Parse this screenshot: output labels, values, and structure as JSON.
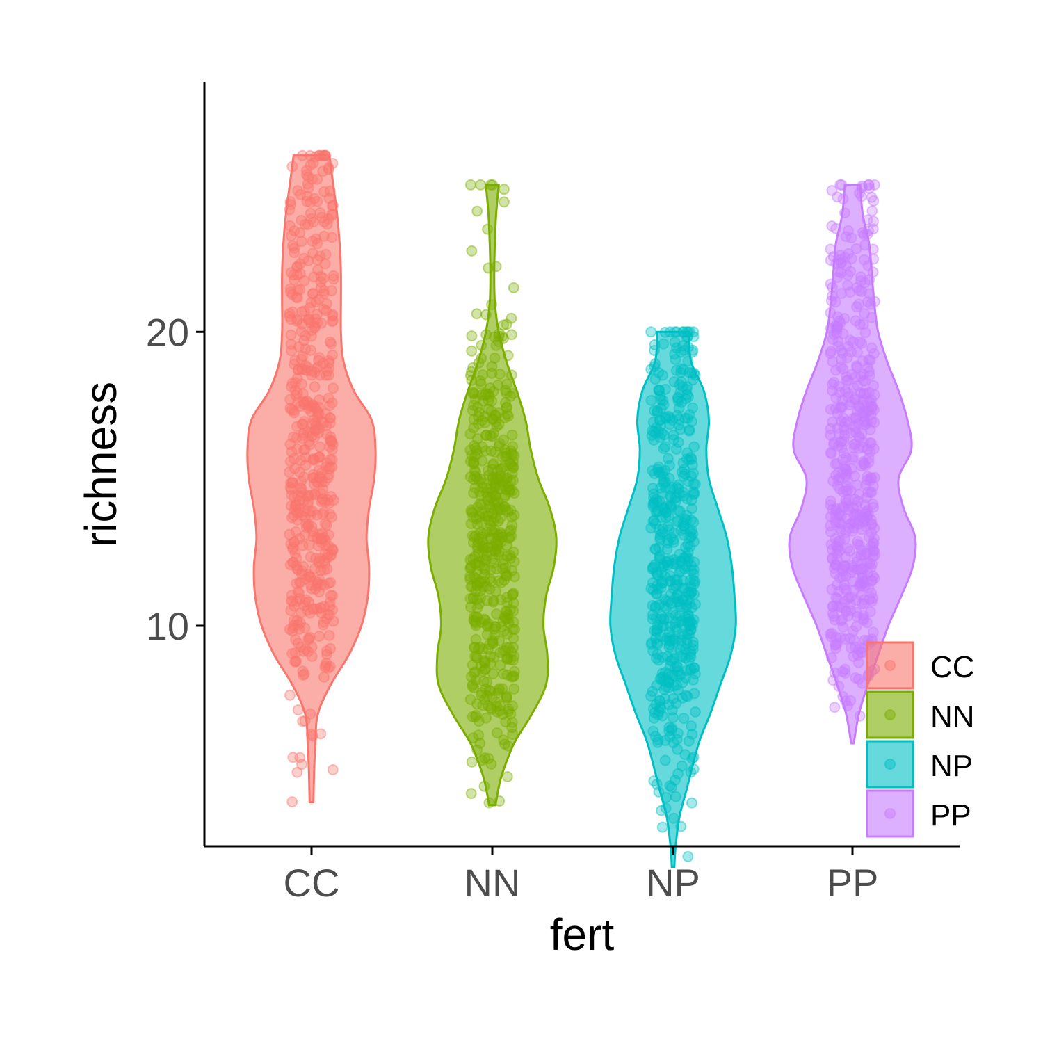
{
  "chart_data": {
    "type": "violin",
    "xlabel": "fert",
    "ylabel": "richness",
    "categories": [
      "CC",
      "NN",
      "NP",
      "PP"
    ],
    "ylim": [
      2.5,
      28.5
    ],
    "yticks": [
      10,
      20
    ],
    "grid": false,
    "legend": {
      "position": "bottom-right",
      "entries": [
        "CC",
        "NN",
        "NP",
        "PP"
      ]
    },
    "colors": {
      "CC": "#F8766D",
      "NN": "#7CAE00",
      "NP": "#00BFC4",
      "PP": "#C77CFF"
    },
    "series": [
      {
        "name": "CC",
        "min": 4,
        "max": 26,
        "median": 15,
        "density": [
          [
            4,
            0.03
          ],
          [
            5,
            0.04
          ],
          [
            6,
            0.06
          ],
          [
            7,
            0.1
          ],
          [
            8,
            0.3
          ],
          [
            9,
            0.58
          ],
          [
            10,
            0.78
          ],
          [
            11,
            0.88
          ],
          [
            12,
            0.9
          ],
          [
            13,
            0.86
          ],
          [
            14,
            0.9
          ],
          [
            15,
            0.98
          ],
          [
            16,
            1.0
          ],
          [
            17,
            0.94
          ],
          [
            18,
            0.66
          ],
          [
            19,
            0.5
          ],
          [
            20,
            0.46
          ],
          [
            21,
            0.46
          ],
          [
            22,
            0.46
          ],
          [
            23,
            0.44
          ],
          [
            24,
            0.4
          ],
          [
            25,
            0.34
          ],
          [
            26,
            0.28
          ]
        ]
      },
      {
        "name": "NN",
        "min": 3.9,
        "max": 25,
        "median": 12,
        "density": [
          [
            3.9,
            0.05
          ],
          [
            4.5,
            0.1
          ],
          [
            5,
            0.16
          ],
          [
            6,
            0.34
          ],
          [
            7,
            0.62
          ],
          [
            8,
            0.84
          ],
          [
            9,
            0.86
          ],
          [
            10,
            0.8
          ],
          [
            11,
            0.84
          ],
          [
            12,
            0.96
          ],
          [
            13,
            1.0
          ],
          [
            14,
            0.9
          ],
          [
            15,
            0.72
          ],
          [
            16,
            0.6
          ],
          [
            17,
            0.52
          ],
          [
            18,
            0.38
          ],
          [
            19,
            0.22
          ],
          [
            20,
            0.1
          ],
          [
            21,
            0.04
          ],
          [
            22,
            0.03
          ],
          [
            23,
            0.04
          ],
          [
            24,
            0.06
          ],
          [
            25,
            0.1
          ]
        ]
      },
      {
        "name": "NP",
        "min": 1.8,
        "max": 20,
        "median": 11.5,
        "density": [
          [
            1.8,
            0.02
          ],
          [
            2.5,
            0.04
          ],
          [
            3.5,
            0.1
          ],
          [
            4.5,
            0.22
          ],
          [
            6,
            0.4
          ],
          [
            7,
            0.58
          ],
          [
            8,
            0.74
          ],
          [
            9,
            0.9
          ],
          [
            10,
            0.98
          ],
          [
            11,
            0.96
          ],
          [
            12,
            0.92
          ],
          [
            13,
            0.84
          ],
          [
            14,
            0.7
          ],
          [
            15,
            0.56
          ],
          [
            16,
            0.52
          ],
          [
            17,
            0.56
          ],
          [
            18,
            0.48
          ],
          [
            19,
            0.28
          ],
          [
            20,
            0.25
          ]
        ]
      },
      {
        "name": "PP",
        "min": 6,
        "max": 25,
        "median": 14.5,
        "density": [
          [
            6,
            0.02
          ],
          [
            7,
            0.1
          ],
          [
            8,
            0.24
          ],
          [
            9,
            0.4
          ],
          [
            10,
            0.56
          ],
          [
            11,
            0.76
          ],
          [
            12,
            0.94
          ],
          [
            13,
            0.98
          ],
          [
            14,
            0.8
          ],
          [
            15,
            0.72
          ],
          [
            16,
            0.92
          ],
          [
            17,
            0.86
          ],
          [
            18,
            0.72
          ],
          [
            19,
            0.54
          ],
          [
            20,
            0.4
          ],
          [
            21,
            0.34
          ],
          [
            22,
            0.3
          ],
          [
            23,
            0.26
          ],
          [
            24,
            0.16
          ],
          [
            25,
            0.12
          ]
        ]
      }
    ]
  }
}
